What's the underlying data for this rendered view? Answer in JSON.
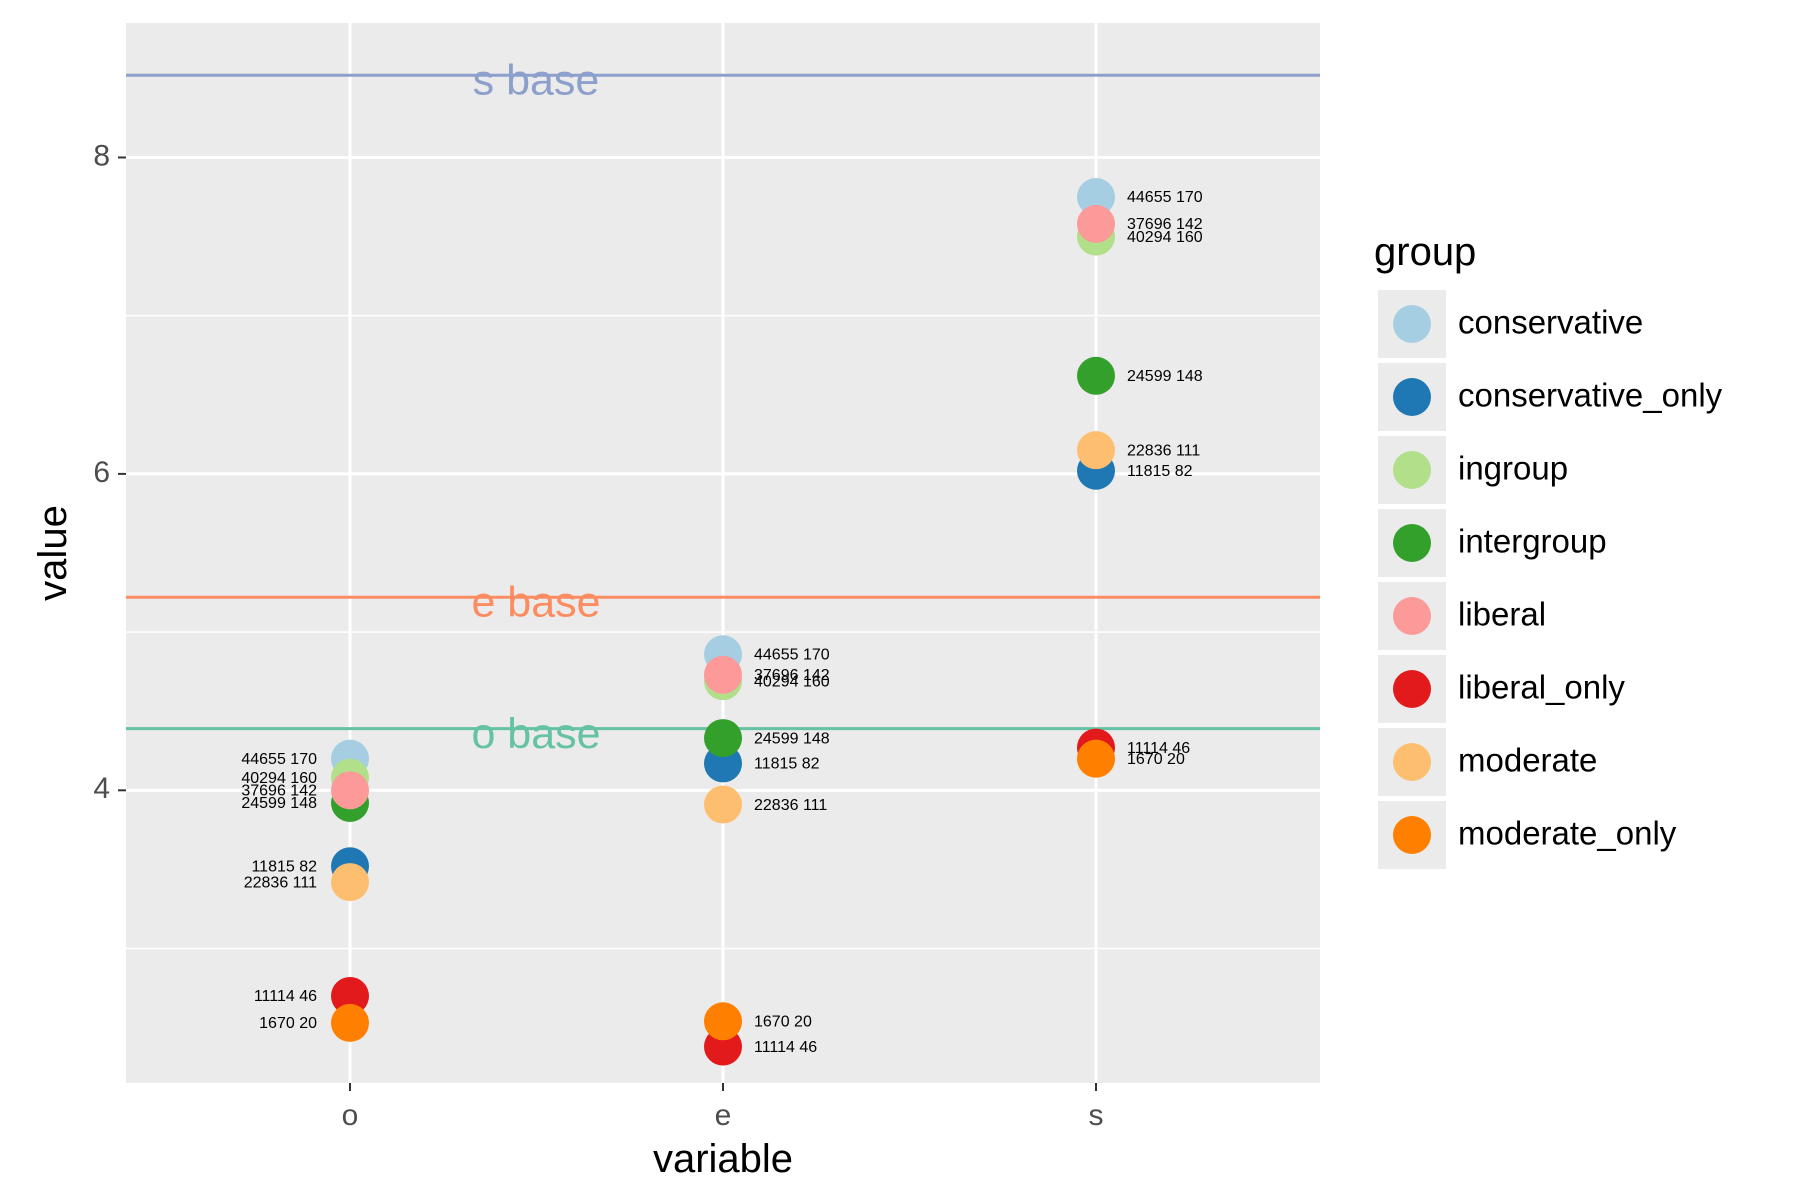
{
  "chart_data": {
    "type": "scatter",
    "title": "",
    "xlabel": "variable",
    "ylabel": "value",
    "categories": [
      "o",
      "e",
      "s"
    ],
    "y_ticks": [
      4,
      6,
      8
    ],
    "ylim": [
      2.15,
      8.85
    ],
    "grid": true,
    "legend": {
      "title": "group",
      "placement": "right"
    },
    "reference_lines": [
      {
        "label": "s base",
        "value": 8.52,
        "color": "#8da0cb"
      },
      {
        "label": "e base",
        "value": 5.22,
        "color": "#fc8d62"
      },
      {
        "label": "o base",
        "value": 4.39,
        "color": "#66c2a5"
      }
    ],
    "series": [
      {
        "name": "conservative",
        "color": "#a6cee3",
        "values": [
          4.2,
          4.86,
          7.75
        ],
        "labels": [
          "44655 170",
          "44655 170",
          "44655 170"
        ]
      },
      {
        "name": "conservative_only",
        "color": "#1f78b4",
        "values": [
          3.52,
          4.17,
          6.02
        ],
        "labels": [
          "11815 82",
          "11815 82",
          "11815 82"
        ]
      },
      {
        "name": "ingroup",
        "color": "#b2df8a",
        "values": [
          4.08,
          4.69,
          7.5
        ],
        "labels": [
          "40294 160",
          "40294 160",
          "40294 160"
        ]
      },
      {
        "name": "intergroup",
        "color": "#33a02c",
        "values": [
          3.92,
          4.33,
          6.62
        ],
        "labels": [
          "24599 148",
          "24599 148",
          "24599 148"
        ]
      },
      {
        "name": "liberal",
        "color": "#fb9a99",
        "values": [
          4.0,
          4.73,
          7.58
        ],
        "labels": [
          "37696 142",
          "37696 142",
          "37696 142"
        ]
      },
      {
        "name": "liberal_only",
        "color": "#e31a1c",
        "values": [
          2.7,
          2.38,
          4.27
        ],
        "labels": [
          "11114 46",
          "11114 46",
          "11114 46"
        ]
      },
      {
        "name": "moderate",
        "color": "#fdbf6f",
        "values": [
          3.42,
          3.91,
          6.15
        ],
        "labels": [
          "22836 111",
          "22836 111",
          "22836 111"
        ]
      },
      {
        "name": "moderate_only",
        "color": "#ff7f00",
        "values": [
          2.53,
          2.54,
          4.2
        ],
        "labels": [
          "1670 20",
          "1670 20",
          "1670 20"
        ]
      }
    ]
  }
}
